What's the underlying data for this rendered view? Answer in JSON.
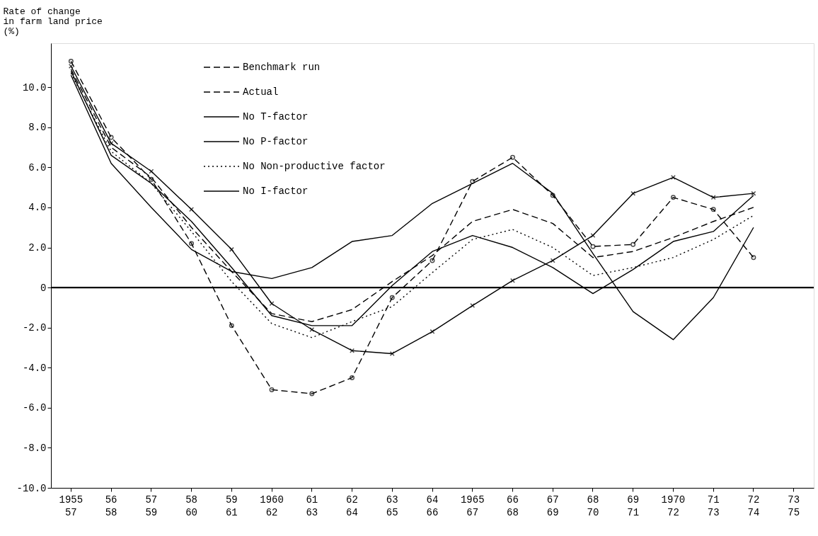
{
  "chart_data": {
    "type": "line",
    "ylabel": "Rate of change\nin farm land price\n(%)",
    "categories": [
      "1955\n57",
      "56\n58",
      "57\n59",
      "58\n60",
      "59\n61",
      "1960\n62",
      "61\n63",
      "62\n64",
      "63\n65",
      "64\n66",
      "1965\n67",
      "66\n68",
      "67\n69",
      "68\n70",
      "69\n71",
      "1970\n72",
      "71\n73",
      "72\n74",
      "73\n75"
    ],
    "ylim": [
      -10,
      12.2
    ],
    "yticks": [
      {
        "value": -10,
        "label": "-10.0"
      },
      {
        "value": -8,
        "label": "-8.0"
      },
      {
        "value": -6,
        "label": "-6.0"
      },
      {
        "value": -4,
        "label": "-4.0"
      },
      {
        "value": -2,
        "label": "-2.0"
      },
      {
        "value": 0,
        "label": "0"
      },
      {
        "value": 2,
        "label": "2.0"
      },
      {
        "value": 4,
        "label": "4.0"
      },
      {
        "value": 6,
        "label": "6.0"
      },
      {
        "value": 8,
        "label": "8.0"
      },
      {
        "value": 10,
        "label": "10.0"
      }
    ],
    "grid": false,
    "legend": "top left",
    "ref_lines": [
      {
        "axis": "y",
        "value": 0,
        "color": "#000000",
        "line_style": "solid"
      }
    ],
    "series": [
      {
        "name": "Benchmark run",
        "color": "#000000",
        "line_style": "dashed",
        "marker": "none",
        "values": [
          10.9,
          7.0,
          5.5,
          3.0,
          0.8,
          -1.3,
          -1.7,
          -1.1,
          0.3,
          1.6,
          3.3,
          3.9,
          3.2,
          1.5,
          1.8,
          2.5,
          3.3,
          4.0,
          null
        ]
      },
      {
        "name": "Actual",
        "color": "#000000",
        "line_style": "dashed",
        "marker": "circle",
        "values": [
          11.3,
          7.5,
          5.4,
          2.2,
          -1.9,
          -5.1,
          -5.3,
          -4.5,
          -0.5,
          1.35,
          5.3,
          6.5,
          4.6,
          2.05,
          2.15,
          4.5,
          3.9,
          1.5,
          null
        ]
      },
      {
        "name": "No T-factor",
        "color": "#000000",
        "line_style": "solid",
        "marker": "none",
        "values": [
          10.6,
          6.2,
          4.0,
          1.9,
          0.8,
          0.45,
          1.0,
          2.3,
          2.6,
          4.2,
          5.2,
          6.2,
          4.7,
          1.7,
          -1.2,
          -2.6,
          -0.5,
          3.0,
          null
        ]
      },
      {
        "name": "No P-factor",
        "color": "#000000",
        "line_style": "solid",
        "marker": "cross",
        "values": [
          11.05,
          7.2,
          5.8,
          3.9,
          1.9,
          -0.8,
          -2.1,
          -3.15,
          -3.3,
          -2.2,
          -0.9,
          0.35,
          1.35,
          2.6,
          4.7,
          5.5,
          4.5,
          4.7,
          null
        ]
      },
      {
        "name": "No Non-productive factor",
        "color": "#000000",
        "line_style": "dotted",
        "marker": "none",
        "values": [
          10.7,
          6.8,
          5.2,
          2.8,
          0.3,
          -1.8,
          -2.5,
          -1.7,
          -0.95,
          0.75,
          2.4,
          2.9,
          2.0,
          0.6,
          1.0,
          1.5,
          2.4,
          3.6,
          null
        ]
      },
      {
        "name": "No I-factor",
        "color": "#000000",
        "line_style": "solid",
        "marker": "none",
        "values": [
          10.8,
          6.6,
          5.2,
          3.3,
          1.0,
          -1.4,
          -1.9,
          -1.9,
          0.1,
          1.8,
          2.6,
          2.0,
          1.0,
          -0.3,
          0.9,
          2.3,
          2.8,
          4.6,
          null
        ]
      }
    ]
  }
}
